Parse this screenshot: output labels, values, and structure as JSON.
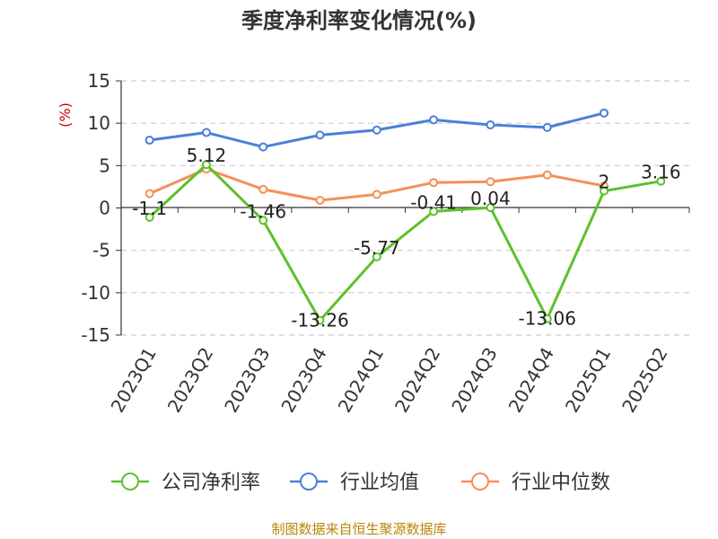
{
  "chart_data": {
    "type": "line",
    "title": "季度净利率变化情况(%)",
    "ylabel": "(%)",
    "ylim": [
      -15,
      15
    ],
    "yticks": [
      "15",
      "10",
      "5",
      "0",
      "-5",
      "-10",
      "-15"
    ],
    "categories": [
      "2023Q1",
      "2023Q2",
      "2023Q3",
      "2023Q4",
      "2024Q1",
      "2024Q2",
      "2024Q3",
      "2024Q4",
      "2025Q1",
      "2025Q2"
    ],
    "series": [
      {
        "name": "公司净利率",
        "color": "#5cc12b",
        "values": [
          -1.1,
          5.12,
          -1.46,
          -13.26,
          -5.77,
          -0.41,
          0.04,
          -13.06,
          2,
          3.16
        ],
        "labels": [
          "-1.1",
          "5.12",
          "-1.46",
          "-13.26",
          "-5.77",
          "-0.41",
          "0.04",
          "-13.06",
          "2",
          "3.16"
        ]
      },
      {
        "name": "行业均值",
        "color": "#4c7fd9",
        "values": [
          8.0,
          8.9,
          7.2,
          8.6,
          9.2,
          10.4,
          9.8,
          9.5,
          11.2,
          null
        ]
      },
      {
        "name": "行业中位数",
        "color": "#f58f5a",
        "values": [
          1.7,
          4.6,
          2.2,
          0.9,
          1.6,
          3.0,
          3.1,
          3.9,
          2.6,
          null
        ]
      }
    ],
    "grid": true,
    "legend_position": "bottom"
  },
  "footer": {
    "source": "制图数据来自恒生聚源数据库"
  }
}
